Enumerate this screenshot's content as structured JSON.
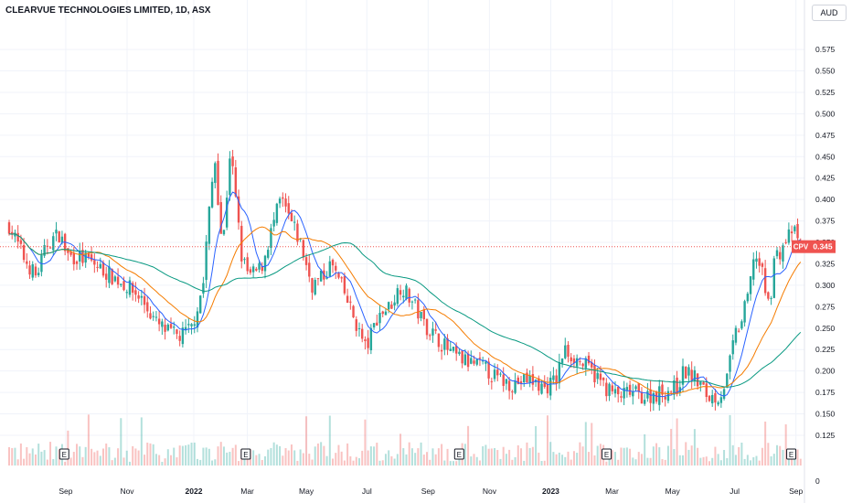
{
  "header": {
    "title": "CLEARVUE TECHNOLOGIES LIMITED, 1D, ASX"
  },
  "currency_button": "AUD",
  "colors": {
    "up": "#26a69a",
    "down": "#ef5350",
    "neutral": "#787b86",
    "ma_fast": "#2962ff",
    "ma_mid": "#f57c00",
    "ma_slow": "#089981",
    "grid": "#f0f3fa",
    "price_line": "#ef5350"
  },
  "price_tag": {
    "symbol": "CPV",
    "value": "0.345"
  },
  "event_label": "E",
  "chart_data": {
    "type": "candlestick",
    "title": "CLEARVUE TECHNOLOGIES LIMITED, 1D, ASX",
    "currency": "AUD",
    "ylim": [
      0.11,
      0.59
    ],
    "y_ticks": [
      "0.575",
      "0.550",
      "0.525",
      "0.500",
      "0.475",
      "0.450",
      "0.425",
      "0.400",
      "0.375",
      "0.350",
      "0.325",
      "0.300",
      "0.275",
      "0.250",
      "0.225",
      "0.200",
      "0.175",
      "0.150",
      "0.125"
    ],
    "volume_axis_tick": "0",
    "x_tick_labels": [
      "Sep",
      "Nov",
      "2022",
      "Mar",
      "May",
      "Jul",
      "Sep",
      "Nov",
      "2023",
      "Mar",
      "May",
      "Jul",
      "Sep"
    ],
    "x_tick_t": [
      0.073,
      0.152,
      0.238,
      0.307,
      0.383,
      0.461,
      0.54,
      0.619,
      0.698,
      0.777,
      0.855,
      0.935,
      1.014
    ],
    "last_price": 0.345,
    "earnings_markers_t": [
      0.071,
      0.305,
      0.58,
      0.77,
      1.008
    ],
    "close_path": [
      [
        0.0,
        0.37
      ],
      [
        0.02,
        0.33
      ],
      [
        0.035,
        0.31
      ],
      [
        0.05,
        0.35
      ],
      [
        0.065,
        0.36
      ],
      [
        0.075,
        0.335
      ],
      [
        0.1,
        0.33
      ],
      [
        0.125,
        0.315
      ],
      [
        0.15,
        0.3
      ],
      [
        0.17,
        0.285
      ],
      [
        0.19,
        0.255
      ],
      [
        0.205,
        0.245
      ],
      [
        0.22,
        0.24
      ],
      [
        0.235,
        0.25
      ],
      [
        0.25,
        0.3
      ],
      [
        0.255,
        0.36
      ],
      [
        0.265,
        0.45
      ],
      [
        0.275,
        0.34
      ],
      [
        0.285,
        0.46
      ],
      [
        0.3,
        0.33
      ],
      [
        0.31,
        0.31
      ],
      [
        0.325,
        0.32
      ],
      [
        0.34,
        0.37
      ],
      [
        0.35,
        0.4
      ],
      [
        0.36,
        0.38
      ],
      [
        0.375,
        0.35
      ],
      [
        0.39,
        0.3
      ],
      [
        0.405,
        0.31
      ],
      [
        0.415,
        0.325
      ],
      [
        0.43,
        0.295
      ],
      [
        0.445,
        0.26
      ],
      [
        0.46,
        0.225
      ],
      [
        0.475,
        0.265
      ],
      [
        0.49,
        0.275
      ],
      [
        0.505,
        0.3
      ],
      [
        0.52,
        0.28
      ],
      [
        0.535,
        0.255
      ],
      [
        0.55,
        0.24
      ],
      [
        0.57,
        0.22
      ],
      [
        0.59,
        0.21
      ],
      [
        0.61,
        0.205
      ],
      [
        0.63,
        0.19
      ],
      [
        0.65,
        0.185
      ],
      [
        0.67,
        0.19
      ],
      [
        0.69,
        0.18
      ],
      [
        0.705,
        0.19
      ],
      [
        0.715,
        0.225
      ],
      [
        0.73,
        0.215
      ],
      [
        0.75,
        0.2
      ],
      [
        0.77,
        0.18
      ],
      [
        0.785,
        0.17
      ],
      [
        0.8,
        0.175
      ],
      [
        0.82,
        0.17
      ],
      [
        0.84,
        0.175
      ],
      [
        0.86,
        0.18
      ],
      [
        0.87,
        0.2
      ],
      [
        0.88,
        0.195
      ],
      [
        0.89,
        0.185
      ],
      [
        0.9,
        0.17
      ],
      [
        0.915,
        0.17
      ],
      [
        0.925,
        0.19
      ],
      [
        0.935,
        0.24
      ],
      [
        0.945,
        0.26
      ],
      [
        0.955,
        0.3
      ],
      [
        0.96,
        0.34
      ],
      [
        0.97,
        0.315
      ],
      [
        0.98,
        0.27
      ],
      [
        0.985,
        0.33
      ],
      [
        0.995,
        0.34
      ],
      [
        1.0,
        0.35
      ],
      [
        1.01,
        0.365
      ],
      [
        1.02,
        0.345
      ]
    ]
  }
}
